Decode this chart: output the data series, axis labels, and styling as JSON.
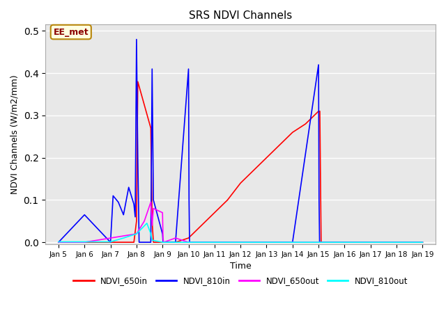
{
  "title": "SRS NDVI Channels",
  "ylabel": "NDVI Channels (W/m2/mm)",
  "xlabel": "Time",
  "annotation_text": "EE_met",
  "ylim": [
    -0.005,
    0.515
  ],
  "background_color": "#e8e8e8",
  "series": {
    "NDVI_650in": {
      "color": "red",
      "label": "NDVI_650in",
      "x": [
        5.0,
        6.0,
        7.0,
        7.9,
        8.0,
        8.05,
        8.55,
        8.6,
        8.65,
        9.0,
        9.05,
        9.5,
        10.0,
        10.5,
        11.0,
        11.5,
        12.0,
        12.5,
        13.0,
        13.5,
        14.0,
        14.5,
        15.0,
        15.05,
        15.1,
        16.0,
        17.0,
        18.0,
        19.0
      ],
      "y": [
        0.0,
        0.0,
        0.0,
        0.0,
        0.05,
        0.38,
        0.27,
        0.05,
        0.0,
        0.0,
        0.0,
        0.0,
        0.01,
        0.04,
        0.07,
        0.1,
        0.14,
        0.17,
        0.2,
        0.23,
        0.26,
        0.28,
        0.31,
        0.31,
        0.0,
        0.0,
        0.0,
        0.0,
        0.0
      ]
    },
    "NDVI_810in": {
      "color": "blue",
      "label": "NDVI_810in",
      "x": [
        5.0,
        6.0,
        7.0,
        7.1,
        7.3,
        7.5,
        7.7,
        7.9,
        7.95,
        8.0,
        8.05,
        8.1,
        8.5,
        8.55,
        8.6,
        8.65,
        9.0,
        9.02,
        9.04,
        9.5,
        10.0,
        10.02,
        10.04,
        10.5,
        11.0,
        12.0,
        13.0,
        14.0,
        15.0,
        15.02,
        15.04,
        15.5,
        16.0,
        17.0,
        18.0,
        19.0
      ],
      "y": [
        0.0,
        0.065,
        0.0,
        0.11,
        0.095,
        0.065,
        0.13,
        0.09,
        0.06,
        0.48,
        0.2,
        0.0,
        0.0,
        0.0,
        0.41,
        0.1,
        0.02,
        0.0,
        0.0,
        0.0,
        0.41,
        0.1,
        0.0,
        0.0,
        0.0,
        0.0,
        0.0,
        0.0,
        0.42,
        0.1,
        0.0,
        0.0,
        0.0,
        0.0,
        0.0,
        0.0
      ]
    },
    "NDVI_650out": {
      "color": "magenta",
      "label": "NDVI_650out",
      "x": [
        5.0,
        6.0,
        7.0,
        7.5,
        8.0,
        8.3,
        8.55,
        8.6,
        8.65,
        9.0,
        9.02,
        9.04,
        9.5,
        10.0,
        10.5,
        11.0,
        12.0,
        13.0,
        14.0,
        15.0,
        16.0,
        17.0,
        18.0,
        19.0
      ],
      "y": [
        0.0,
        0.0,
        0.01,
        0.015,
        0.02,
        0.05,
        0.095,
        0.04,
        0.08,
        0.07,
        0.01,
        0.0,
        0.01,
        0.0,
        0.0,
        0.0,
        0.0,
        0.0,
        0.0,
        0.0,
        0.0,
        0.0,
        0.0,
        0.0
      ]
    },
    "NDVI_810out": {
      "color": "cyan",
      "label": "NDVI_810out",
      "x": [
        5.0,
        6.0,
        7.0,
        7.5,
        8.0,
        8.4,
        8.55,
        8.6,
        9.0,
        9.1,
        10.0,
        11.0,
        12.0,
        13.0,
        14.0,
        15.0,
        16.0,
        17.0,
        18.0,
        19.0
      ],
      "y": [
        0.001,
        0.001,
        0.001,
        0.01,
        0.02,
        0.045,
        0.02,
        0.005,
        0.0,
        0.0,
        0.0,
        0.0,
        0.0,
        0.0,
        0.0,
        0.0,
        0.0,
        0.0,
        0.0,
        0.0
      ]
    }
  },
  "xtick_labels": [
    "Jan 5",
    "Jan 6",
    "Jan 7",
    "Jan 8",
    "Jan 9",
    "Jan 10",
    "Jan 11",
    "Jan 12",
    "Jan 13",
    "Jan 14",
    "Jan 15",
    "Jan 16",
    "Jan 17",
    "Jan 18",
    "Jan 19"
  ],
  "xtick_positions": [
    5,
    6,
    7,
    8,
    9,
    10,
    11,
    12,
    13,
    14,
    15,
    16,
    17,
    18,
    19
  ],
  "grid_color": "#d0d0d0",
  "spine_color": "#aaaaaa"
}
